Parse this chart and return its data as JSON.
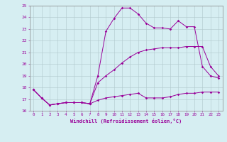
{
  "background_color": "#d6eef2",
  "grid_color": "#b0c8cc",
  "line_color": "#990099",
  "xlim": [
    -0.5,
    23.5
  ],
  "ylim": [
    16,
    25
  ],
  "xticks": [
    0,
    1,
    2,
    3,
    4,
    5,
    6,
    7,
    8,
    9,
    10,
    11,
    12,
    13,
    14,
    15,
    16,
    17,
    18,
    19,
    20,
    21,
    22,
    23
  ],
  "yticks": [
    16,
    17,
    18,
    19,
    20,
    21,
    22,
    23,
    24,
    25
  ],
  "xlabel": "Windchill (Refroidissement éolien,°C)",
  "line1_x": [
    0,
    1,
    2,
    3,
    4,
    5,
    6,
    7,
    8,
    9,
    10,
    11,
    12,
    13,
    14,
    15,
    16,
    17,
    18,
    19,
    20,
    21,
    22,
    23
  ],
  "line1_y": [
    17.8,
    17.1,
    16.5,
    16.6,
    16.7,
    16.7,
    16.7,
    16.6,
    19.0,
    22.8,
    23.9,
    24.8,
    24.8,
    24.3,
    23.5,
    23.1,
    23.1,
    23.0,
    23.7,
    23.2,
    23.2,
    19.8,
    19.0,
    18.8
  ],
  "line2_x": [
    0,
    1,
    2,
    3,
    4,
    5,
    6,
    7,
    8,
    9,
    10,
    11,
    12,
    13,
    14,
    15,
    16,
    17,
    18,
    19,
    20,
    21,
    22,
    23
  ],
  "line2_y": [
    17.8,
    17.1,
    16.5,
    16.6,
    16.7,
    16.7,
    16.7,
    16.6,
    18.4,
    19.0,
    19.5,
    20.1,
    20.6,
    21.0,
    21.2,
    21.3,
    21.4,
    21.4,
    21.4,
    21.5,
    21.5,
    21.5,
    19.8,
    19.0
  ],
  "line3_x": [
    0,
    1,
    2,
    3,
    4,
    5,
    6,
    7,
    8,
    9,
    10,
    11,
    12,
    13,
    14,
    15,
    16,
    17,
    18,
    19,
    20,
    21,
    22,
    23
  ],
  "line3_y": [
    17.8,
    17.1,
    16.5,
    16.6,
    16.7,
    16.7,
    16.7,
    16.6,
    16.9,
    17.1,
    17.2,
    17.3,
    17.4,
    17.5,
    17.1,
    17.1,
    17.1,
    17.2,
    17.4,
    17.5,
    17.5,
    17.6,
    17.6,
    17.6
  ],
  "figsize": [
    3.2,
    2.0
  ],
  "dpi": 100
}
